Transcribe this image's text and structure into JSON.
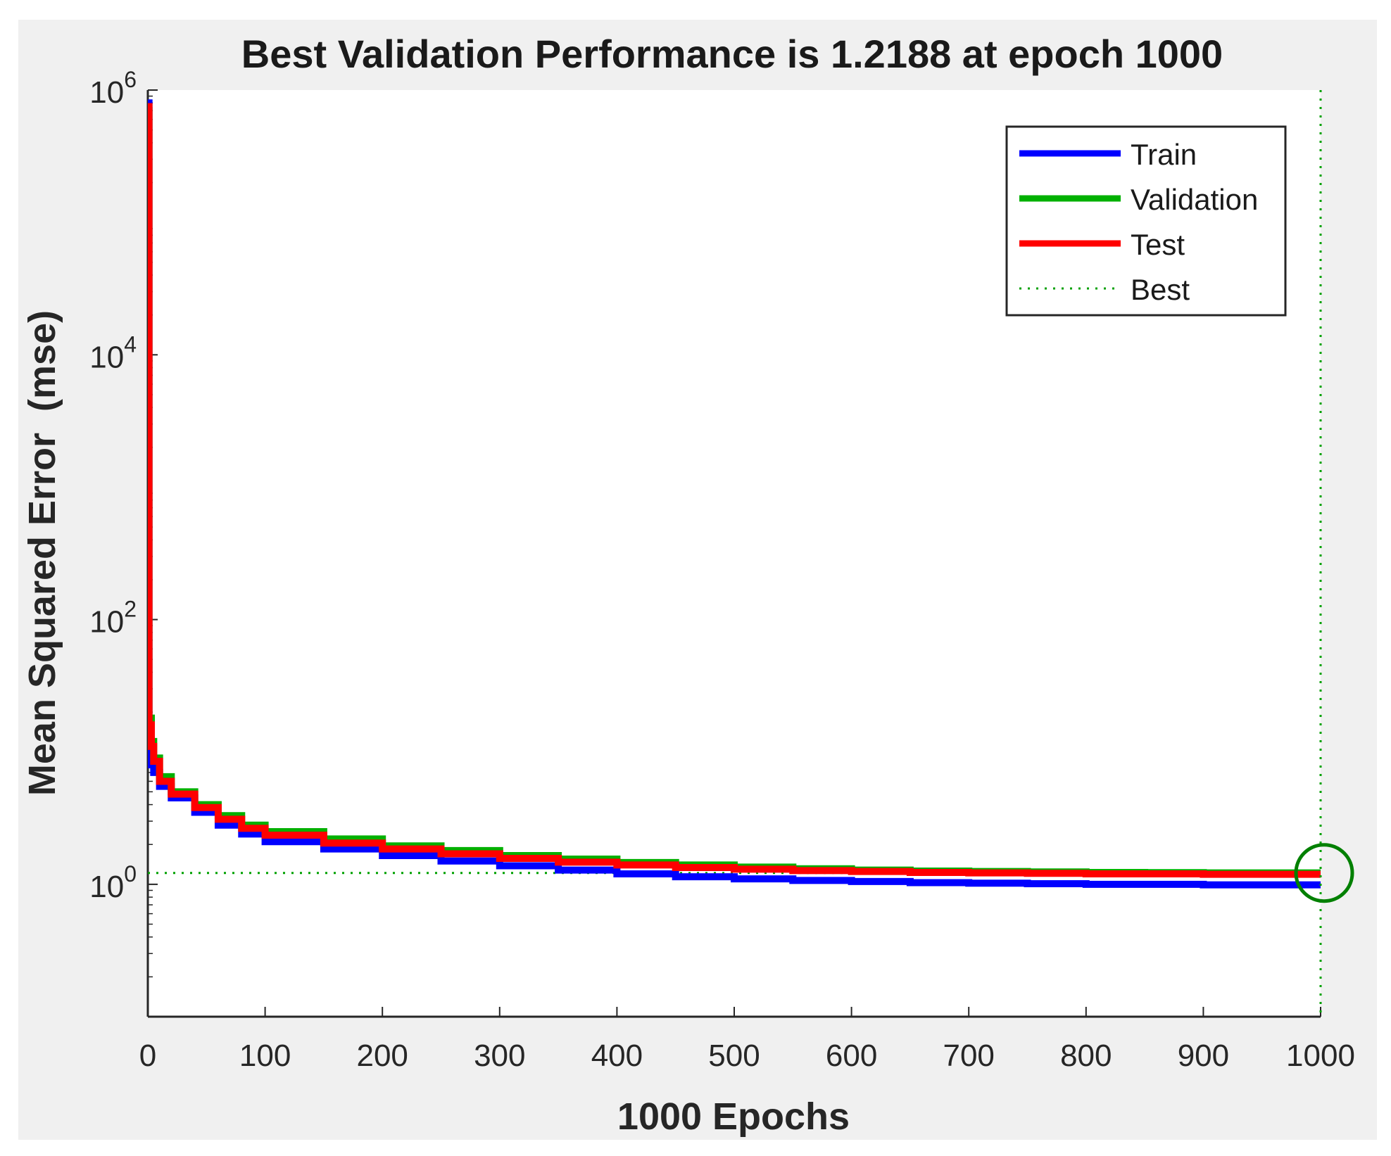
{
  "chart_data": {
    "type": "line",
    "title": "Best Validation Performance is 1.2188 at epoch 1000",
    "xlabel": "1000 Epochs",
    "ylabel": "Mean Squared Error  (mse)",
    "yscale": "log",
    "xlim": [
      0,
      1000
    ],
    "ylim": [
      0.1,
      1000000
    ],
    "xticks": [
      0,
      100,
      200,
      300,
      400,
      500,
      600,
      700,
      800,
      900,
      1000
    ],
    "yticks": [
      {
        "base": "10",
        "exp": "0",
        "value": 1
      },
      {
        "base": "10",
        "exp": "2",
        "value": 100
      },
      {
        "base": "10",
        "exp": "4",
        "value": 10000
      },
      {
        "base": "10",
        "exp": "6",
        "value": 1000000
      }
    ],
    "legend_position": "top-right",
    "series": [
      {
        "name": "Train",
        "color": "#0000ff",
        "style": "solid",
        "x": [
          0,
          1,
          3,
          5,
          10,
          20,
          40,
          60,
          80,
          100,
          150,
          200,
          250,
          300,
          350,
          400,
          450,
          500,
          550,
          600,
          650,
          700,
          750,
          800,
          850,
          900,
          950,
          1000
        ],
        "y": [
          800000,
          10,
          8,
          7,
          5.5,
          4.5,
          3.5,
          2.8,
          2.4,
          2.1,
          1.85,
          1.65,
          1.5,
          1.38,
          1.28,
          1.2,
          1.14,
          1.1,
          1.07,
          1.05,
          1.03,
          1.02,
          1.01,
          1.0,
          1.0,
          0.99,
          0.99,
          0.99
        ]
      },
      {
        "name": "Validation",
        "color": "#00b000",
        "style": "solid",
        "x": [
          0,
          1,
          3,
          5,
          10,
          20,
          40,
          60,
          80,
          100,
          150,
          200,
          250,
          300,
          350,
          400,
          450,
          500,
          550,
          600,
          650,
          700,
          750,
          800,
          850,
          900,
          950,
          1000
        ],
        "y": [
          700000,
          18,
          12,
          9,
          6.5,
          5.0,
          4.0,
          3.3,
          2.8,
          2.5,
          2.2,
          1.95,
          1.8,
          1.65,
          1.55,
          1.46,
          1.4,
          1.35,
          1.31,
          1.28,
          1.26,
          1.25,
          1.24,
          1.23,
          1.225,
          1.22,
          1.219,
          1.2188
        ]
      },
      {
        "name": "Test",
        "color": "#ff0000",
        "style": "solid",
        "x": [
          0,
          1,
          3,
          5,
          10,
          20,
          40,
          60,
          80,
          100,
          150,
          200,
          250,
          300,
          350,
          400,
          450,
          500,
          550,
          600,
          650,
          700,
          750,
          800,
          850,
          900,
          950,
          1000
        ],
        "y": [
          750000,
          16,
          11,
          8.5,
          6.0,
          4.8,
          3.8,
          3.1,
          2.65,
          2.35,
          2.05,
          1.85,
          1.7,
          1.57,
          1.47,
          1.4,
          1.34,
          1.3,
          1.27,
          1.25,
          1.23,
          1.22,
          1.21,
          1.2,
          1.2,
          1.19,
          1.19,
          1.19
        ]
      },
      {
        "name": "Best",
        "color": "#00a000",
        "style": "dotted",
        "x": [
          0,
          1000
        ],
        "y": [
          1.2188,
          1.2188
        ]
      }
    ],
    "best_marker": {
      "epoch": 1000,
      "value": 1.2188,
      "color": "#008000"
    }
  }
}
